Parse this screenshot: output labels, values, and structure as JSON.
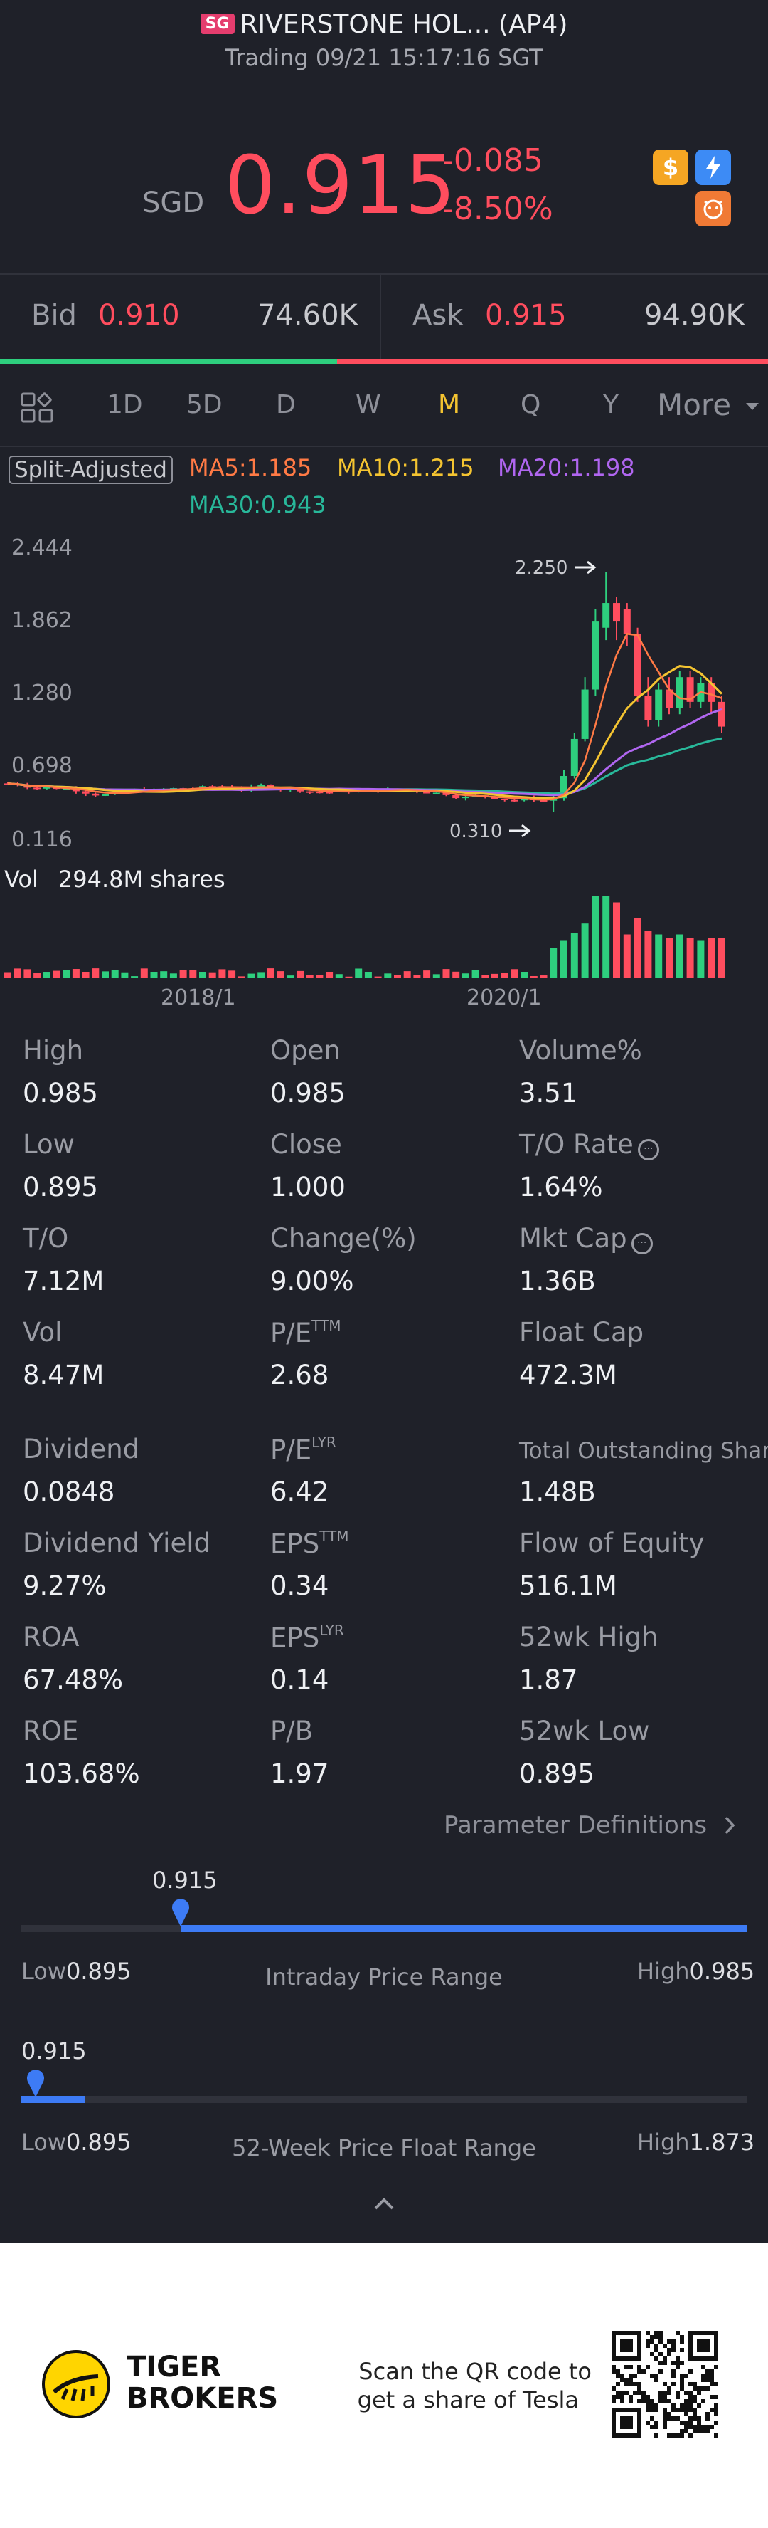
{
  "header": {
    "market_badge": "SG",
    "title": "RIVERSTONE HOL... (AP4)",
    "status": "Trading 09/21 15:17:16 SGT"
  },
  "quote": {
    "currency": "SGD",
    "price": "0.915",
    "change": "-0.085",
    "change_pct": "-8.50%",
    "icons": [
      "dollar-coin-icon",
      "flash-icon",
      "tiger-face-icon"
    ]
  },
  "bid_ask": {
    "bid_label": "Bid",
    "bid_price": "0.910",
    "bid_volume": "74.60K",
    "ask_label": "Ask",
    "ask_price": "0.915",
    "ask_volume": "94.90K",
    "bid_share": 0.44
  },
  "tabs": {
    "items": [
      "1D",
      "5D",
      "D",
      "W",
      "M",
      "Q",
      "Y"
    ],
    "active": "M",
    "more": "More"
  },
  "chart": {
    "adjust_label": "Split-Adjusted",
    "ma5": "MA5:1.185",
    "ma10": "MA10:1.215",
    "ma20": "MA20:1.198",
    "ma30": "MA30:0.943",
    "y_ticks": [
      "2.444",
      "1.862",
      "1.280",
      "0.698",
      "0.116"
    ],
    "max_label": "2.250",
    "min_label": "0.310",
    "vol_label": "Vol",
    "vol_value": "294.8M shares",
    "x_ticks": [
      "2018/1",
      "2020/1"
    ],
    "colors": {
      "up": "#2ecf7e",
      "down": "#ff4d5e",
      "ma5": "#ff7a45",
      "ma10": "#f4c431",
      "ma20": "#b066f0",
      "ma30": "#28b89a"
    }
  },
  "chart_data": {
    "type": "candlestick",
    "y_range": [
      0.116,
      2.444
    ],
    "x_ticks": [
      "2018/1",
      "2020/1"
    ],
    "highlight": {
      "high": 2.25,
      "low": 0.31
    },
    "ma": {
      "MA5": 1.185,
      "MA10": 1.215,
      "MA20": 1.198,
      "MA30": 0.943
    },
    "recent_candles": [
      {
        "o": 0.4,
        "c": 0.42,
        "h": 0.45,
        "l": 0.31,
        "up": true
      },
      {
        "o": 0.42,
        "c": 0.6,
        "h": 0.65,
        "l": 0.4,
        "up": true
      },
      {
        "o": 0.6,
        "c": 0.9,
        "h": 0.95,
        "l": 0.58,
        "up": true
      },
      {
        "o": 0.9,
        "c": 1.3,
        "h": 1.4,
        "l": 0.88,
        "up": true
      },
      {
        "o": 1.3,
        "c": 1.85,
        "h": 1.95,
        "l": 1.25,
        "up": true
      },
      {
        "o": 1.8,
        "c": 2.0,
        "h": 2.25,
        "l": 1.7,
        "up": true
      },
      {
        "o": 2.0,
        "c": 1.85,
        "h": 2.05,
        "l": 1.7,
        "up": false
      },
      {
        "o": 1.95,
        "c": 1.75,
        "h": 2.0,
        "l": 1.65,
        "up": false
      },
      {
        "o": 1.75,
        "c": 1.25,
        "h": 1.8,
        "l": 1.2,
        "up": false
      },
      {
        "o": 1.25,
        "c": 1.05,
        "h": 1.4,
        "l": 1.0,
        "up": false
      },
      {
        "o": 1.05,
        "c": 1.3,
        "h": 1.35,
        "l": 1.0,
        "up": true
      },
      {
        "o": 1.3,
        "c": 1.15,
        "h": 1.4,
        "l": 1.1,
        "up": false
      },
      {
        "o": 1.15,
        "c": 1.4,
        "h": 1.45,
        "l": 1.1,
        "up": true
      },
      {
        "o": 1.4,
        "c": 1.2,
        "h": 1.45,
        "l": 1.15,
        "up": false
      },
      {
        "o": 1.2,
        "c": 1.35,
        "h": 1.4,
        "l": 1.15,
        "up": true
      },
      {
        "o": 1.35,
        "c": 1.2,
        "h": 1.4,
        "l": 1.1,
        "up": false
      },
      {
        "o": 1.2,
        "c": 1.0,
        "h": 1.25,
        "l": 0.95,
        "up": false
      }
    ]
  },
  "stats": [
    [
      {
        "label": "High",
        "value": "0.985"
      },
      {
        "label": "Open",
        "value": "0.985"
      },
      {
        "label": "Volume%",
        "value": "3.51"
      }
    ],
    [
      {
        "label": "Low",
        "value": "0.895"
      },
      {
        "label": "Close",
        "value": "1.000"
      },
      {
        "label": "T/O Rate",
        "value": "1.64%",
        "info": true
      }
    ],
    [
      {
        "label": "T/O",
        "value": "7.12M"
      },
      {
        "label": "Change(%)",
        "value": "9.00%"
      },
      {
        "label": "Mkt Cap",
        "value": "1.36B",
        "info": true
      }
    ],
    [
      {
        "label": "Vol",
        "value": "8.47M"
      },
      {
        "label": "P/E",
        "sup": "TTM",
        "value": "2.68"
      },
      {
        "label": "Float Cap",
        "value": "472.3M"
      }
    ],
    [
      {
        "label": "Dividend",
        "value": "0.0848"
      },
      {
        "label": "P/E",
        "sup": "LYR",
        "value": "6.42"
      },
      {
        "label": "Total Outstanding Shares",
        "value": "1.48B",
        "small": true
      }
    ],
    [
      {
        "label": "Dividend Yield",
        "value": "9.27%"
      },
      {
        "label": "EPS",
        "sup": "TTM",
        "value": "0.34"
      },
      {
        "label": "Flow of Equity",
        "value": "516.1M"
      }
    ],
    [
      {
        "label": "ROA",
        "value": "67.48%"
      },
      {
        "label": "EPS",
        "sup": "LYR",
        "value": "0.14"
      },
      {
        "label": "52wk High",
        "value": "1.87"
      }
    ],
    [
      {
        "label": "ROE",
        "value": "103.68%"
      },
      {
        "label": "P/B",
        "value": "1.97"
      },
      {
        "label": "52wk Low",
        "value": "0.895"
      }
    ]
  ],
  "param_link": "Parameter Definitions",
  "intraday": {
    "current": "0.915",
    "low_label": "Low",
    "low": "0.895",
    "title": "Intraday Price Range",
    "high_label": "High",
    "high": "0.985",
    "position": 0.22
  },
  "week52": {
    "current": "0.915",
    "low_label": "Low",
    "low": "0.895",
    "title": "52-Week Price Float Range",
    "high_label": "High",
    "high": "1.873",
    "position": 0.02
  },
  "footer": {
    "brand_line1": "TIGER",
    "brand_line2": "BROKERS",
    "qr_line1": "Scan the QR code to",
    "qr_line2": "get a share of Tesla"
  }
}
